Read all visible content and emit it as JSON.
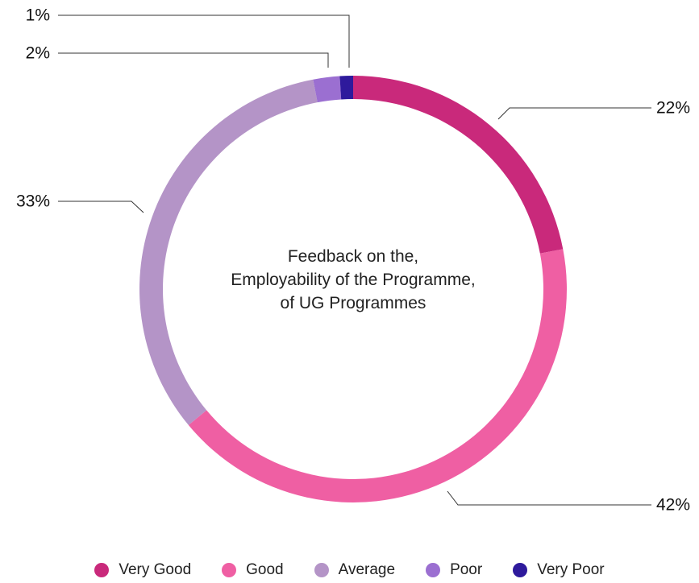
{
  "chart_data": {
    "type": "pie",
    "variant": "donut",
    "title_lines": [
      "Feedback on the,",
      "Employability of the Programme,",
      "of UG Programmes"
    ],
    "categories": [
      "Very Good",
      "Good",
      "Average",
      "Poor",
      "Very Poor"
    ],
    "values": [
      22,
      42,
      33,
      2,
      1
    ],
    "value_labels": [
      "22%",
      "42%",
      "33%",
      "2%",
      "1%"
    ],
    "colors": [
      "#c9297b",
      "#ef5fa3",
      "#b494c7",
      "#9b6fd1",
      "#2e1a9c"
    ],
    "legend_position": "bottom"
  }
}
